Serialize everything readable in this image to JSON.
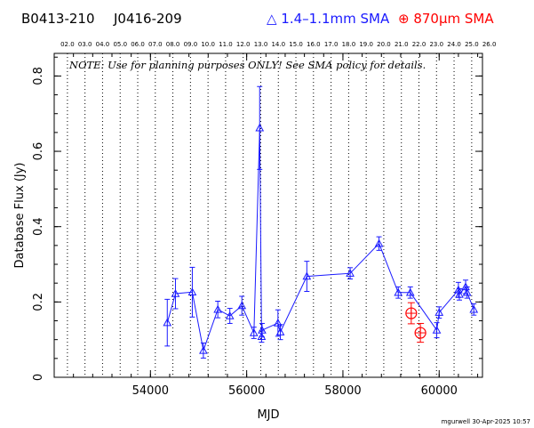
{
  "header": {
    "source_name": "B0413-210",
    "source_alias": "J0416-209",
    "legend_blue": "△ 1.4–1.1mm SMA",
    "legend_red": "⊕ 870μm SMA"
  },
  "note": "NOTE: Use for planning purposes ONLY!  See SMA policy for details.",
  "footer": "mgurwell 30-Apr-2025 10:57",
  "colors": {
    "blue": "#1a1aff",
    "red": "#ff0000",
    "axis": "#000000"
  },
  "chart_data": {
    "type": "scatter",
    "xlabel": "MJD",
    "ylabel": "Database Flux (Jy)",
    "xlim": [
      52000,
      60900
    ],
    "ylim": [
      0,
      0.86
    ],
    "x_ticks": [
      54000,
      56000,
      58000,
      60000
    ],
    "x_tick_labels": [
      "54000",
      "56000",
      "58000",
      "60000"
    ],
    "y_ticks": [
      0,
      0.2,
      0.4,
      0.6,
      0.8
    ],
    "y_tick_labels": [
      "0",
      "0.2",
      "0.4",
      "0.6",
      "0.8"
    ],
    "top_axis_years": [
      "02.0",
      "03.0",
      "04.0",
      "05.0",
      "06.0",
      "07.0",
      "08.0",
      "09.0",
      "10.0",
      "11.0",
      "12.0",
      "13.0",
      "14.0",
      "15.0",
      "16.0",
      "17.0",
      "18.0",
      "19.0",
      "20.0",
      "21.0",
      "22.0",
      "23.0",
      "24.0",
      "25.0",
      "26.0"
    ],
    "top_axis_mjd": [
      52275,
      52640,
      53005,
      53371,
      53736,
      54101,
      54466,
      54832,
      55197,
      55562,
      55927,
      56293,
      56658,
      57023,
      57388,
      57754,
      58119,
      58484,
      58849,
      59215,
      59580,
      59945,
      60310,
      60676,
      61041
    ],
    "grid": "vertical dotted lines at year boundaries",
    "series": [
      {
        "name": "1.4–1.1mm SMA",
        "color": "#1a1aff",
        "marker": "triangle",
        "connected": true,
        "points": [
          {
            "x": 54350,
            "y": 0.145,
            "err": 0.062
          },
          {
            "x": 54520,
            "y": 0.222,
            "err": 0.04
          },
          {
            "x": 54870,
            "y": 0.226,
            "err": 0.066
          },
          {
            "x": 55100,
            "y": 0.071,
            "err": 0.02
          },
          {
            "x": 55400,
            "y": 0.18,
            "err": 0.022
          },
          {
            "x": 55650,
            "y": 0.163,
            "err": 0.02
          },
          {
            "x": 55900,
            "y": 0.19,
            "err": 0.025
          },
          {
            "x": 56150,
            "y": 0.118,
            "err": 0.015
          },
          {
            "x": 56270,
            "y": 0.662,
            "err": 0.11
          },
          {
            "x": 56310,
            "y": 0.108,
            "err": 0.015
          },
          {
            "x": 56320,
            "y": 0.125,
            "err": 0.018
          },
          {
            "x": 56650,
            "y": 0.144,
            "err": 0.035
          },
          {
            "x": 56700,
            "y": 0.12,
            "err": 0.02
          },
          {
            "x": 57250,
            "y": 0.268,
            "err": 0.04
          },
          {
            "x": 58150,
            "y": 0.276,
            "err": 0.015
          },
          {
            "x": 58750,
            "y": 0.355,
            "err": 0.018
          },
          {
            "x": 59150,
            "y": 0.225,
            "err": 0.015
          },
          {
            "x": 59400,
            "y": 0.225,
            "err": 0.015
          },
          {
            "x": 59950,
            "y": 0.125,
            "err": 0.02
          },
          {
            "x": 60000,
            "y": 0.172,
            "err": 0.015
          },
          {
            "x": 60400,
            "y": 0.232,
            "err": 0.02
          },
          {
            "x": 60420,
            "y": 0.22,
            "err": 0.015
          },
          {
            "x": 60550,
            "y": 0.24,
            "err": 0.018
          },
          {
            "x": 60580,
            "y": 0.225,
            "err": 0.015
          },
          {
            "x": 60720,
            "y": 0.18,
            "err": 0.015
          }
        ]
      },
      {
        "name": "870μm SMA",
        "color": "#ff0000",
        "marker": "circle-plus",
        "connected": false,
        "points": [
          {
            "x": 59420,
            "y": 0.17,
            "err": 0.028
          },
          {
            "x": 59610,
            "y": 0.118,
            "err": 0.025
          }
        ]
      }
    ]
  }
}
